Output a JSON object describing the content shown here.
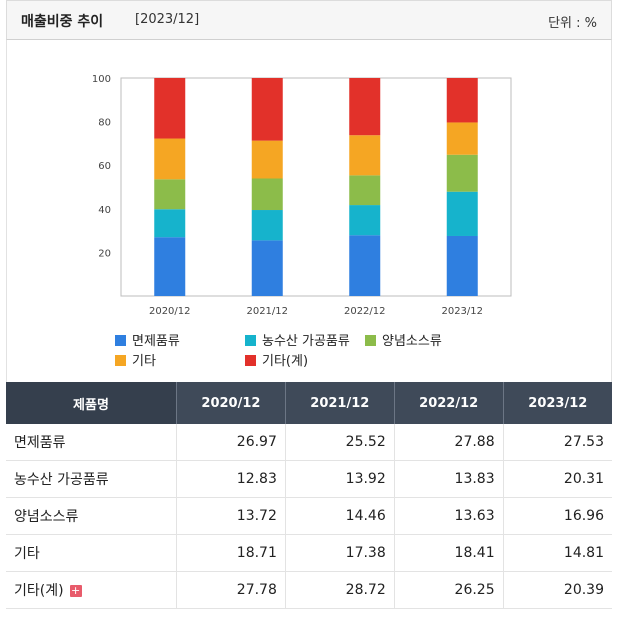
{
  "header": {
    "title": "매출비중 추이",
    "period": "[2023/12]",
    "unit": "단위 : %"
  },
  "chart_data": {
    "type": "bar",
    "stacked": true,
    "categories": [
      "2020/12",
      "2021/12",
      "2022/12",
      "2023/12"
    ],
    "ylim": [
      0,
      100
    ],
    "yticks": [
      20,
      40,
      60,
      80,
      100
    ],
    "legend_position": "bottom",
    "series": [
      {
        "name": "면제품류",
        "color": "#2f7fe0",
        "values": [
          26.97,
          25.52,
          27.88,
          27.53
        ]
      },
      {
        "name": "농수산 가공품류",
        "color": "#16b3cc",
        "values": [
          12.83,
          13.92,
          13.83,
          20.31
        ]
      },
      {
        "name": "양념소스류",
        "color": "#8cbc4a",
        "values": [
          13.72,
          14.46,
          13.63,
          16.96
        ]
      },
      {
        "name": "기타",
        "color": "#f5a623",
        "values": [
          18.71,
          17.38,
          18.41,
          14.81
        ]
      },
      {
        "name": "기타(계)",
        "color": "#e2312a",
        "values": [
          27.78,
          28.72,
          26.25,
          20.39
        ]
      }
    ]
  },
  "table": {
    "headers": [
      "제품명",
      "2020/12",
      "2021/12",
      "2022/12",
      "2023/12"
    ],
    "rows": [
      {
        "name": "면제품류",
        "values": [
          "26.97",
          "25.52",
          "27.88",
          "27.53"
        ]
      },
      {
        "name": "농수산 가공품류",
        "values": [
          "12.83",
          "13.92",
          "13.83",
          "20.31"
        ]
      },
      {
        "name": "양념소스류",
        "values": [
          "13.72",
          "14.46",
          "13.63",
          "16.96"
        ]
      },
      {
        "name": "기타",
        "values": [
          "18.71",
          "17.38",
          "18.41",
          "14.81"
        ]
      },
      {
        "name": "기타(계)",
        "values": [
          "27.78",
          "28.72",
          "26.25",
          "20.39"
        ],
        "expand": "+"
      }
    ]
  }
}
